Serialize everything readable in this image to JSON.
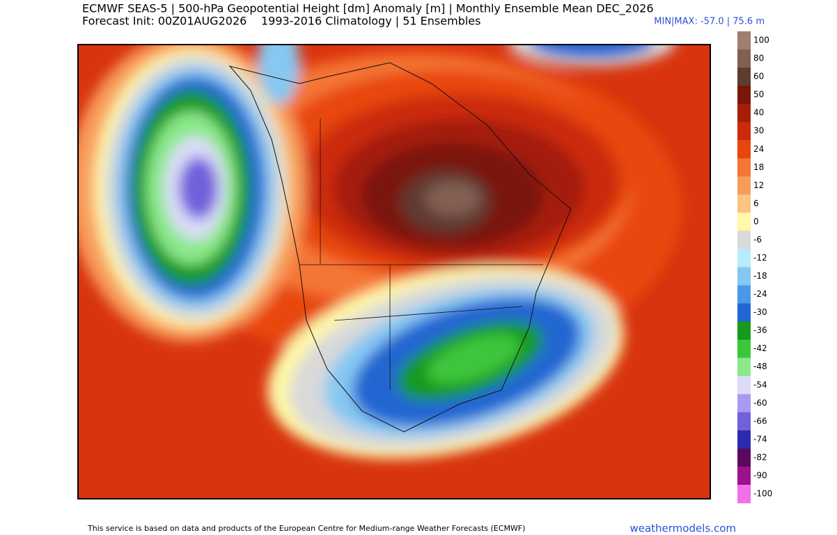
{
  "header": {
    "title": "ECMWF SEAS-5 | 500-hPa Geopotential Height [dm] Anomaly [m] | Monthly Ensemble Mean DEC_2026",
    "init": "Forecast Init: 00Z01AUG2026",
    "climatology": "1993-2016 Climatology | 51 Ensembles",
    "minmax": "MIN|MAX: -57.0 | 75.6 m"
  },
  "colorbar": {
    "ticks": [
      100,
      80,
      60,
      50,
      40,
      30,
      24,
      18,
      12,
      6,
      0,
      -6,
      -12,
      -18,
      -24,
      -30,
      -36,
      -42,
      -48,
      -54,
      -60,
      -66,
      -74,
      -82,
      -90,
      -100
    ],
    "colors": [
      "#a07e70",
      "#825f52",
      "#5f3b30",
      "#7a1608",
      "#a41e08",
      "#cc2a0a",
      "#e8460e",
      "#f47636",
      "#f89c5c",
      "#fcc47e",
      "#fef8a8",
      "#d9d9d9",
      "#b8ecfa",
      "#86c8f2",
      "#4c98e8",
      "#2266d2",
      "#169a1c",
      "#3cc63c",
      "#8ae88a",
      "#dcdcf8",
      "#a89af0",
      "#7060dc",
      "#2a2ab0",
      "#5a0860",
      "#a0108c",
      "#f070e8"
    ]
  },
  "footer": {
    "credit": "This service is based on data and products of the European Centre for Medium-range Weather Forecasts (ECMWF)",
    "site": "weathermodels.com"
  }
}
